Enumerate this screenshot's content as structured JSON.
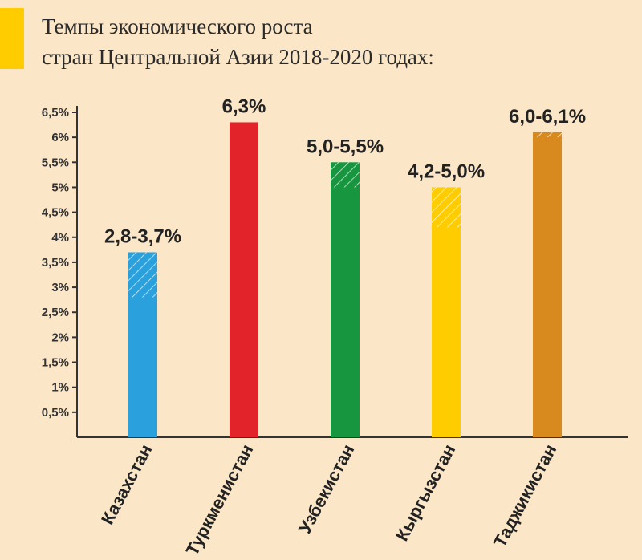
{
  "title": {
    "line1": "Темпы экономического роста",
    "line2": "стран Центральной Азии 2018-2020 годах:"
  },
  "colors": {
    "background": "#fbe7c8",
    "accent": "#ffcc00",
    "axis": "#333333"
  },
  "chart_data": {
    "type": "bar",
    "title": "Темпы экономического роста стран Центральной Азии 2018-2020 годах:",
    "categories": [
      "Казахстан",
      "Туркменистан",
      "Узбекистан",
      "Кыргызстан",
      "Таджикистан"
    ],
    "range_low": [
      2.8,
      6.3,
      5.0,
      4.2,
      6.0
    ],
    "range_high": [
      3.7,
      6.3,
      5.5,
      5.0,
      6.1
    ],
    "value_labels": [
      "2,8-3,7%",
      "6,3%",
      "5,0-5,5%",
      "4,2-5,0%",
      "6,0-6,1%"
    ],
    "bar_colors": [
      "#2aa1dd",
      "#e3232a",
      "#17963f",
      "#ffcc00",
      "#d98a1e"
    ],
    "ylim": [
      0,
      6.5
    ],
    "yticks": [
      0.5,
      1,
      1.5,
      2,
      2.5,
      3,
      3.5,
      4,
      4.5,
      5,
      5.5,
      6,
      6.5
    ],
    "ytick_labels": [
      "0,5%",
      "1%",
      "1,5%",
      "2%",
      "2,5%",
      "3%",
      "3,5%",
      "4%",
      "4,5%",
      "5%",
      "5,5%",
      "6%",
      "6,5%"
    ],
    "grid": false,
    "legend": "none"
  }
}
